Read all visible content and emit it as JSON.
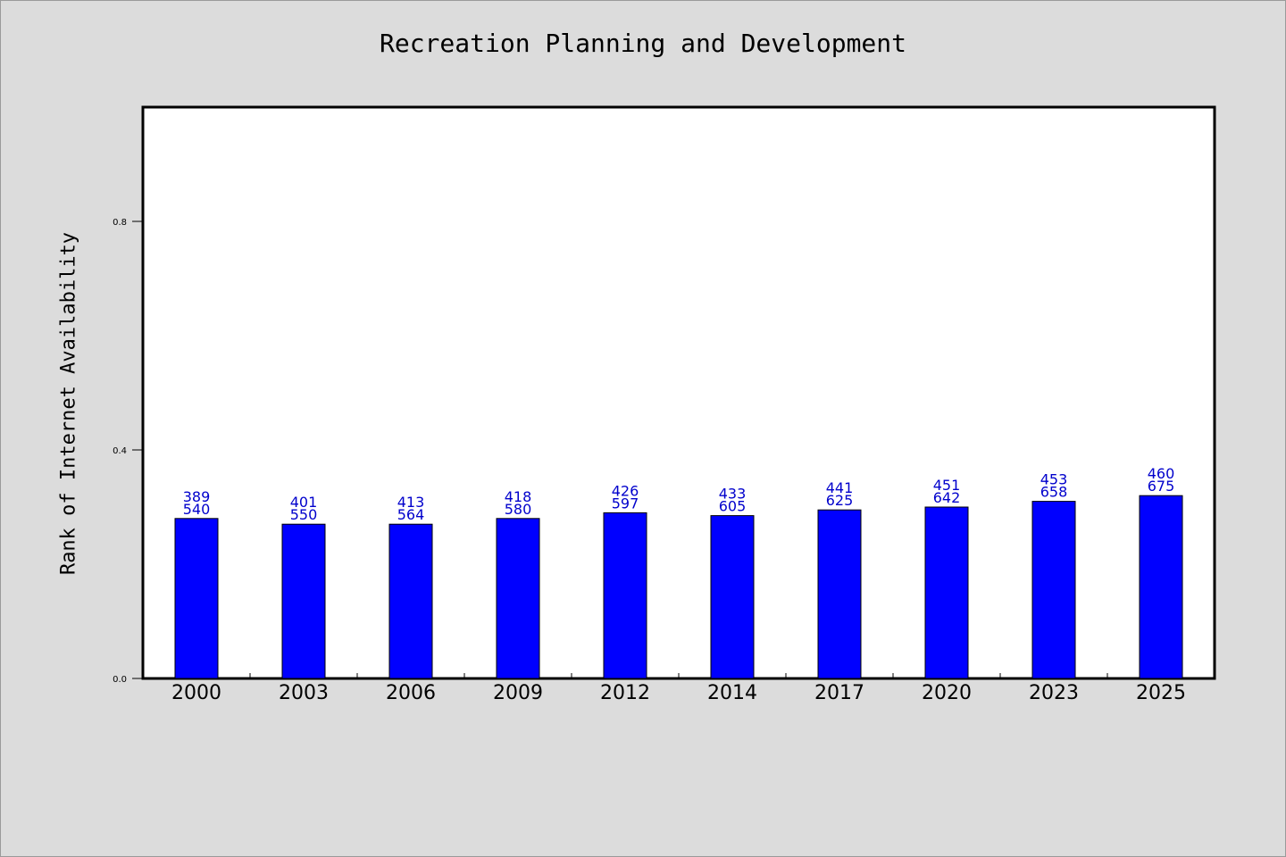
{
  "chart_data": {
    "type": "bar",
    "title": "Recreation Planning and Development",
    "xlabel": "",
    "ylabel": "Rank of Internet Availability",
    "categories": [
      "2000",
      "2003",
      "2006",
      "2009",
      "2012",
      "2014",
      "2017",
      "2020",
      "2023",
      "2025"
    ],
    "series": [
      {
        "values": [
          0.28,
          0.27,
          0.27,
          0.28,
          0.29,
          0.285,
          0.295,
          0.3,
          0.31,
          0.32
        ]
      }
    ],
    "data_labels": [
      {
        "top": "389",
        "bottom": "540"
      },
      {
        "top": "401",
        "bottom": "550"
      },
      {
        "top": "413",
        "bottom": "564"
      },
      {
        "top": "418",
        "bottom": "580"
      },
      {
        "top": "426",
        "bottom": "597"
      },
      {
        "top": "433",
        "bottom": "605"
      },
      {
        "top": "441",
        "bottom": "625"
      },
      {
        "top": "451",
        "bottom": "642"
      },
      {
        "top": "453",
        "bottom": "658"
      },
      {
        "top": "460",
        "bottom": "675"
      }
    ],
    "ylim": [
      0,
      1.0
    ],
    "yticks": [
      0.0,
      0.4,
      0.8
    ],
    "ytick_labels": [
      "0.0",
      "0.4",
      "0.8"
    ],
    "grid": false,
    "colors": {
      "bar": "#0000ff",
      "bar_edge": "#000000",
      "data_label": "#0000cc",
      "plot_bg": "#ffffff",
      "page_bg": "#dcdcdc"
    }
  }
}
